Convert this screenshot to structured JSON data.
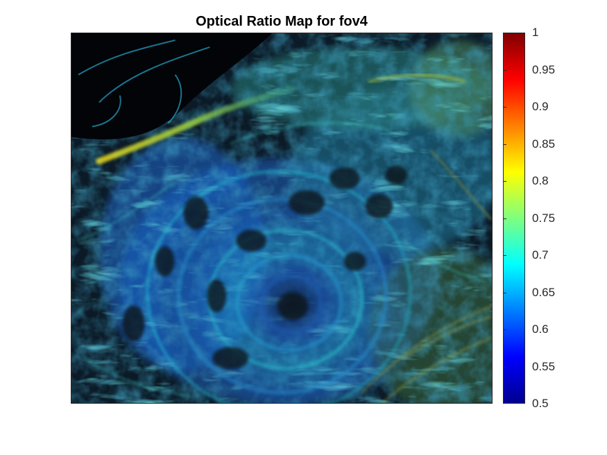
{
  "chart_data": {
    "type": "heatmap",
    "title": "Optical Ratio Map for fov4",
    "xlabel": "",
    "ylabel": "",
    "colormap": "jet",
    "clim": [
      0.5,
      1
    ],
    "colorbar": {
      "location": "right",
      "ticks": [
        0.5,
        0.55,
        0.6,
        0.65,
        0.7,
        0.75,
        0.8,
        0.85,
        0.9,
        0.95,
        1
      ],
      "tick_labels": [
        "0.5",
        "0.55",
        "0.6",
        "0.65",
        "0.7",
        "0.75",
        "0.8",
        "0.85",
        "0.9",
        "0.95",
        "1"
      ]
    },
    "image_description_colors": {
      "background": "#05080c",
      "dominant_low": "#1e5fd0",
      "dominant_mid": "#25c8d8",
      "highlight": "#d8e040"
    },
    "grid": false
  }
}
